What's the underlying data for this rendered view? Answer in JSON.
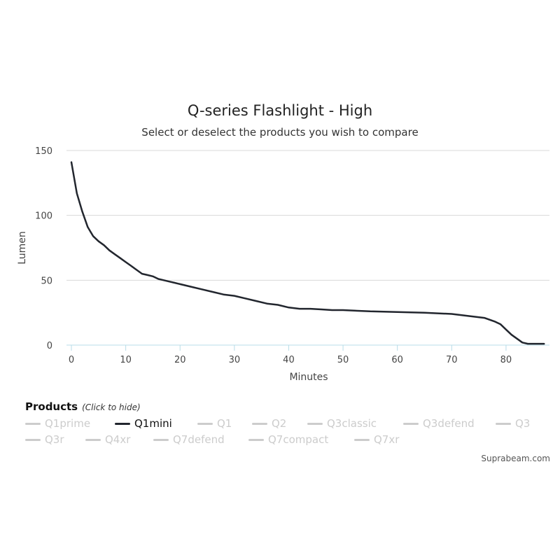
{
  "chart_data": {
    "type": "line",
    "title": "Q-series Flashlight - High",
    "subtitle": "Select or deselect the products you wish to compare",
    "xlabel": "Minutes",
    "ylabel": "Lumen",
    "xlim": [
      0,
      88
    ],
    "ylim": [
      0,
      150
    ],
    "xticks": [
      "0",
      "10",
      "20",
      "30",
      "40",
      "50",
      "60",
      "70",
      "80"
    ],
    "yticks": [
      "0",
      "50",
      "100",
      "150"
    ],
    "series": [
      {
        "name": "Q1mini",
        "color": "#22262e",
        "x": [
          0,
          1,
          2,
          3,
          4,
          5,
          6,
          7,
          8,
          9,
          10,
          11,
          12,
          13,
          14,
          15,
          16,
          17,
          18,
          19,
          20,
          22,
          24,
          26,
          28,
          30,
          32,
          34,
          36,
          38,
          40,
          42,
          44,
          46,
          48,
          50,
          55,
          60,
          65,
          70,
          72,
          74,
          76,
          78,
          79,
          80,
          81,
          82,
          83,
          84,
          85,
          86,
          87
        ],
        "y": [
          141,
          117,
          103,
          91,
          84,
          80,
          77,
          73,
          70,
          67,
          64,
          61,
          58,
          55,
          54,
          53,
          51,
          50,
          49,
          48,
          47,
          45,
          43,
          41,
          39,
          38,
          36,
          34,
          32,
          31,
          29,
          28,
          28,
          27.5,
          27,
          27,
          26,
          25.5,
          25,
          24,
          23,
          22,
          21,
          18,
          16,
          12,
          8,
          5,
          2,
          1,
          1,
          1,
          1
        ]
      }
    ]
  },
  "legend": {
    "title": "Products",
    "hint": "(Click to hide)",
    "rows": [
      [
        {
          "label": "Q1prime",
          "active": false
        },
        {
          "label": "Q1mini",
          "active": true
        },
        {
          "label": "Q1",
          "active": false
        },
        {
          "label": "Q2",
          "active": false
        },
        {
          "label": "Q3classic",
          "active": false
        },
        {
          "label": "Q3defend",
          "active": false
        },
        {
          "label": "Q3",
          "active": false
        }
      ],
      [
        {
          "label": "Q3r",
          "active": false
        },
        {
          "label": "Q4xr",
          "active": false
        },
        {
          "label": "Q7defend",
          "active": false
        },
        {
          "label": "Q7compact",
          "active": false
        },
        {
          "label": "Q7xr",
          "active": false
        }
      ]
    ]
  },
  "credit": "Suprabeam.com"
}
